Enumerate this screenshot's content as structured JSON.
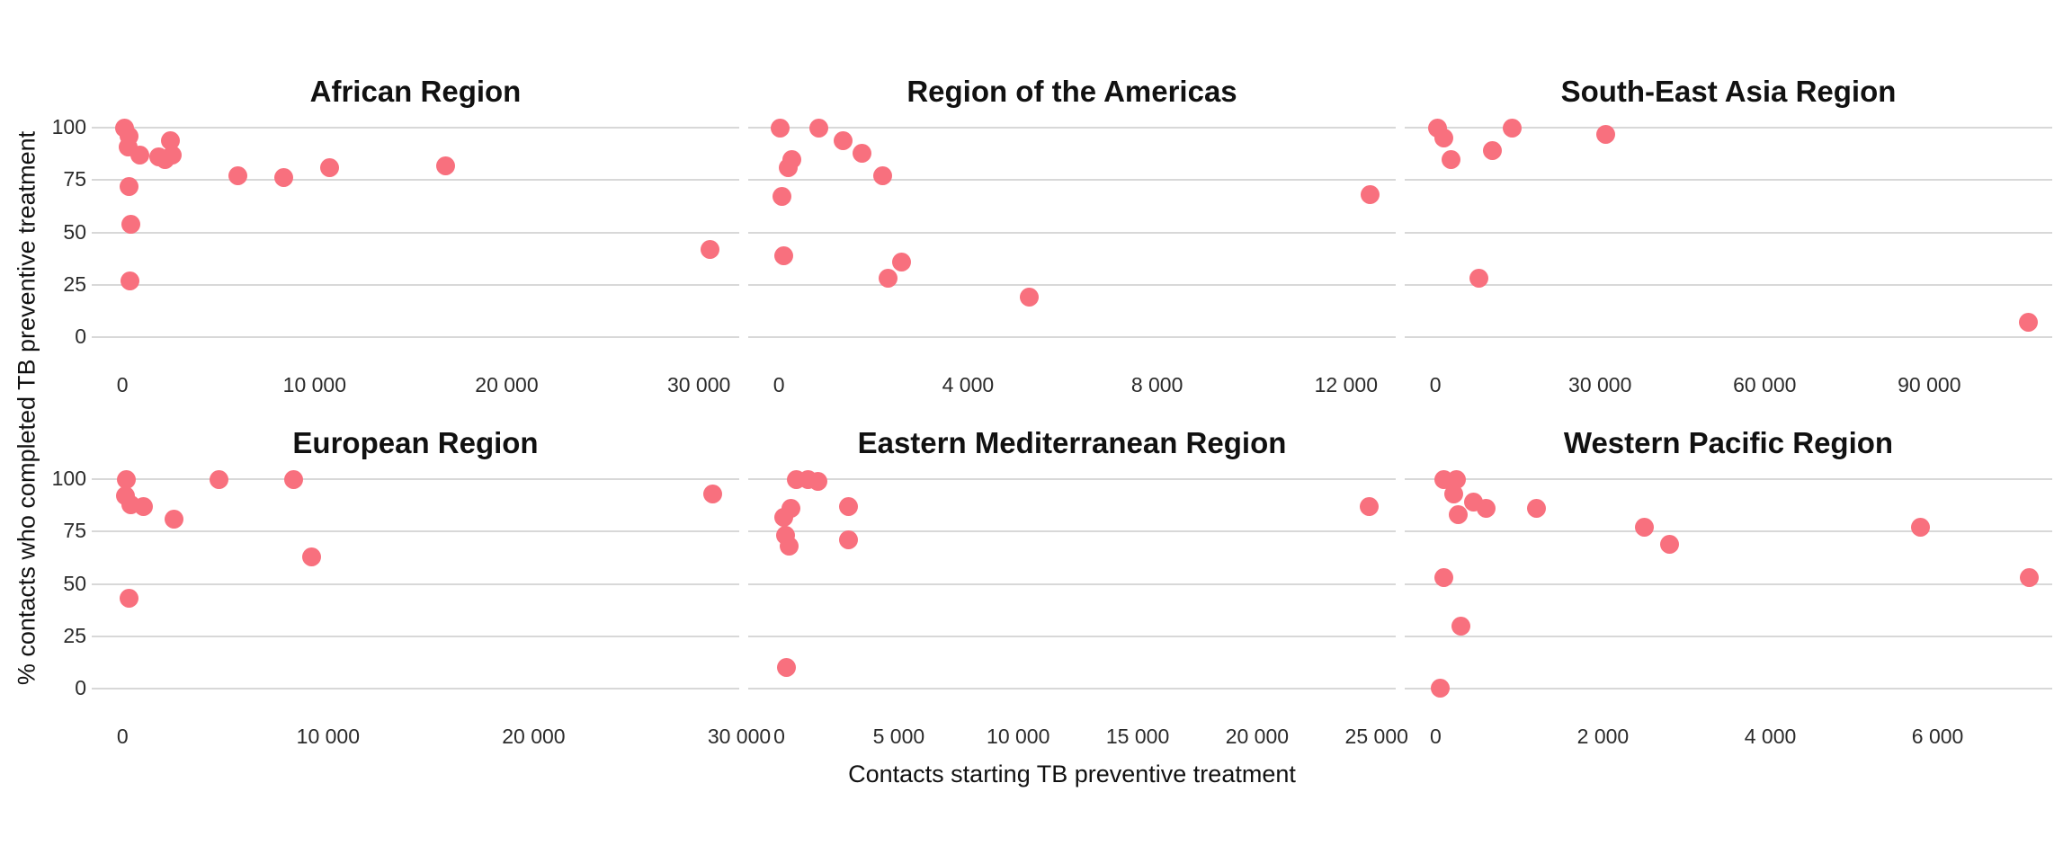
{
  "figure": {
    "x_axis_title": "Contacts starting TB preventive treatment",
    "y_axis_title": "% contacts who completed TB preventive treatment",
    "colors": {
      "dot": "#F8707E",
      "gridline": "#D8D8D8",
      "panel_title_text": "#111111",
      "tick_text": "#2B2B2B",
      "background": "#FFFFFF"
    }
  },
  "chart_data": {
    "type": "scatter",
    "layout": "facet-grid 2 rows x 3 cols",
    "grid": "horizontal gridlines only",
    "legend": "none",
    "xlabel": "Contacts starting TB preventive treatment",
    "ylabel": "% contacts who completed TB preventive treatment",
    "y_ticks": [
      100,
      75,
      50,
      25,
      0
    ],
    "ylim": [
      0,
      100
    ],
    "facets": [
      {
        "title": "African Region",
        "row": 0,
        "col": 0,
        "x_range": [
          -1600,
          32100
        ],
        "x_ticks": [
          {
            "value": 0,
            "label": "0"
          },
          {
            "value": 10000,
            "label": "10 000"
          },
          {
            "value": 20000,
            "label": "20 000"
          },
          {
            "value": 30000,
            "label": "30 000"
          }
        ],
        "points": [
          [
            100,
            100
          ],
          [
            350,
            96
          ],
          [
            300,
            91
          ],
          [
            900,
            87
          ],
          [
            1900,
            86
          ],
          [
            2200,
            85
          ],
          [
            2500,
            94
          ],
          [
            2600,
            87
          ],
          [
            350,
            72
          ],
          [
            450,
            54
          ],
          [
            400,
            27
          ],
          [
            6000,
            77
          ],
          [
            8400,
            76
          ],
          [
            10800,
            81
          ],
          [
            16800,
            82
          ],
          [
            30600,
            42
          ]
        ]
      },
      {
        "title": "Region of the Americas",
        "row": 0,
        "col": 1,
        "x_range": [
          -650,
          13050
        ],
        "x_ticks": [
          {
            "value": 0,
            "label": "0"
          },
          {
            "value": 4000,
            "label": "4 000"
          },
          {
            "value": 8000,
            "label": "8 000"
          },
          {
            "value": 12000,
            "label": "12 000"
          }
        ],
        "points": [
          [
            30,
            100
          ],
          [
            850,
            100
          ],
          [
            1350,
            94
          ],
          [
            1750,
            88
          ],
          [
            2200,
            77
          ],
          [
            270,
            85
          ],
          [
            200,
            81
          ],
          [
            65,
            67
          ],
          [
            110,
            39
          ],
          [
            2600,
            36
          ],
          [
            2300,
            28
          ],
          [
            5300,
            19
          ],
          [
            12500,
            68
          ]
        ]
      },
      {
        "title": "South-East Asia Region",
        "row": 0,
        "col": 2,
        "x_range": [
          -5600,
          112400
        ],
        "x_ticks": [
          {
            "value": 0,
            "label": "0"
          },
          {
            "value": 30000,
            "label": "30 000"
          },
          {
            "value": 60000,
            "label": "60 000"
          },
          {
            "value": 90000,
            "label": "90 000"
          }
        ],
        "points": [
          [
            400,
            100
          ],
          [
            1500,
            95
          ],
          [
            2800,
            85
          ],
          [
            10400,
            89
          ],
          [
            14000,
            100
          ],
          [
            31000,
            97
          ],
          [
            8000,
            28
          ],
          [
            108000,
            7
          ]
        ]
      },
      {
        "title": "European Region",
        "row": 1,
        "col": 0,
        "x_range": [
          -1500,
          30000
        ],
        "x_ticks": [
          {
            "value": 0,
            "label": "0"
          },
          {
            "value": 10000,
            "label": "10 000"
          },
          {
            "value": 20000,
            "label": "20 000"
          },
          {
            "value": 30000,
            "label": "30 000"
          }
        ],
        "points": [
          [
            200,
            100
          ],
          [
            150,
            92
          ],
          [
            400,
            88
          ],
          [
            1000,
            87
          ],
          [
            2500,
            81
          ],
          [
            4700,
            100
          ],
          [
            8300,
            100
          ],
          [
            9200,
            63
          ],
          [
            300,
            43
          ],
          [
            28700,
            93
          ]
        ]
      },
      {
        "title": "Eastern Mediterranean Region",
        "row": 1,
        "col": 1,
        "x_range": [
          -1300,
          25800
        ],
        "x_ticks": [
          {
            "value": 0,
            "label": "0"
          },
          {
            "value": 5000,
            "label": "5 000"
          },
          {
            "value": 10000,
            "label": "10 000"
          },
          {
            "value": 15000,
            "label": "15 000"
          },
          {
            "value": 20000,
            "label": "20 000"
          },
          {
            "value": 25000,
            "label": "25 000"
          }
        ],
        "points": [
          [
            700,
            100
          ],
          [
            1200,
            100
          ],
          [
            1600,
            99
          ],
          [
            2900,
            87
          ],
          [
            2900,
            71
          ],
          [
            500,
            86
          ],
          [
            200,
            82
          ],
          [
            250,
            73
          ],
          [
            400,
            68
          ],
          [
            300,
            10
          ],
          [
            24700,
            87
          ]
        ]
      },
      {
        "title": "Western Pacific Region",
        "row": 1,
        "col": 2,
        "x_range": [
          -370,
          7370
        ],
        "x_ticks": [
          {
            "value": 0,
            "label": "0"
          },
          {
            "value": 2000,
            "label": "2 000"
          },
          {
            "value": 4000,
            "label": "4 000"
          },
          {
            "value": 6000,
            "label": "6 000"
          }
        ],
        "points": [
          [
            100,
            100
          ],
          [
            250,
            100
          ],
          [
            220,
            93
          ],
          [
            270,
            83
          ],
          [
            450,
            89
          ],
          [
            600,
            86
          ],
          [
            1200,
            86
          ],
          [
            2500,
            77
          ],
          [
            2800,
            69
          ],
          [
            5800,
            77
          ],
          [
            100,
            53
          ],
          [
            300,
            30
          ],
          [
            50,
            0
          ],
          [
            7100,
            53
          ]
        ]
      }
    ]
  }
}
